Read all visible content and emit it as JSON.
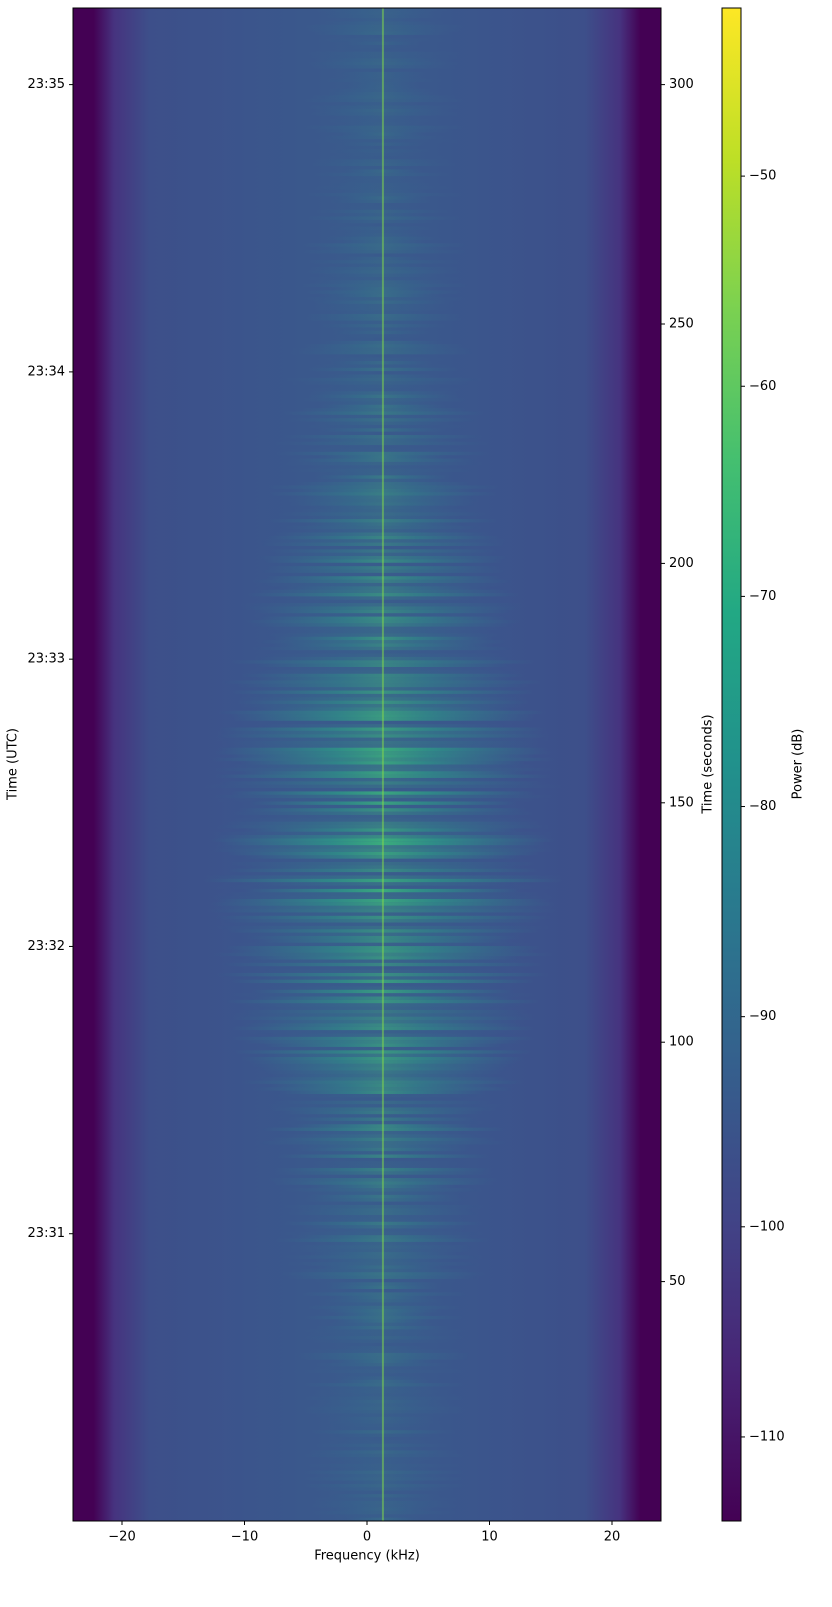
{
  "chart_data": {
    "type": "heatmap",
    "x_label": "Frequency (kHz)",
    "y_label": "Time (UTC)",
    "y2_label": "Time (seconds)",
    "colorbar_label": "Power (dB)",
    "colormap": "viridis",
    "xlim": [
      -24,
      24
    ],
    "xticks": [
      {
        "value": -20,
        "label": "−20"
      },
      {
        "value": -10,
        "label": "−10"
      },
      0,
      10,
      20
    ],
    "ylim": [
      0,
      316
    ],
    "yticks": [
      {
        "value": 60,
        "label": "23:31"
      },
      {
        "value": 120,
        "label": "23:32"
      },
      {
        "value": 180,
        "label": "23:33"
      },
      {
        "value": 240,
        "label": "23:34"
      },
      {
        "value": 300,
        "label": "23:35"
      }
    ],
    "y2lim": [
      0,
      316
    ],
    "y2ticks": [
      50,
      100,
      150,
      200,
      250,
      300
    ],
    "clim": [
      -114,
      -42
    ],
    "cticks": [
      {
        "value": -110,
        "label": "−110"
      },
      {
        "value": -100,
        "label": "−100"
      },
      {
        "value": -90,
        "label": "−90"
      },
      {
        "value": -80,
        "label": "−80"
      },
      {
        "value": -70,
        "label": "−70"
      },
      {
        "value": -60,
        "label": "−60"
      },
      {
        "value": -50,
        "label": "−50"
      }
    ]
  }
}
